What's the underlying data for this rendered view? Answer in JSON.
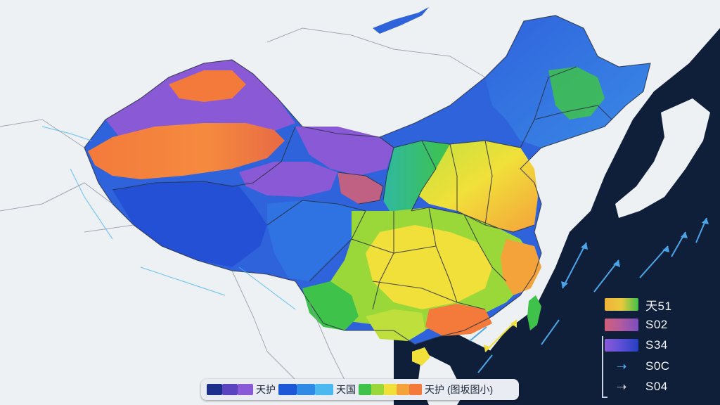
{
  "colors": {
    "ocean": "#0f1f3a",
    "land_neighbor": "#eef1f4",
    "border": "#2a3142",
    "blue_zone": "#2f63dc",
    "purple_zone": "#8a5ad6",
    "orange_zone": "#f47a3c",
    "green_zone": "#3fc24a",
    "yellow_zone": "#f1e03a",
    "arrow": "#4aa6e8"
  },
  "legend_right": {
    "items": [
      {
        "label": "天51",
        "kind": "swatch",
        "gradient": [
          "#f0b13a",
          "#e9c93c",
          "#3fc24a"
        ]
      },
      {
        "label": "S02",
        "kind": "swatch",
        "gradient": [
          "#d0607a",
          "#b05aa0",
          "#7a4ec0"
        ]
      },
      {
        "label": "S34",
        "kind": "swatch",
        "gradient": [
          "#8a5ad6",
          "#5b4fd6",
          "#243fc0"
        ]
      },
      {
        "label": "S0C",
        "kind": "arrow",
        "icon": "arrow-right-icon",
        "color": "#4aa6e8"
      },
      {
        "label": "S04",
        "kind": "arrow",
        "icon": "arrow-right-icon",
        "color": "#c0c6d0"
      }
    ]
  },
  "bottom_legend": {
    "segments_1": [
      "#1c2f8a",
      "#5a44c0",
      "#8a5ad6"
    ],
    "label_1": "天护",
    "segments_2": [
      "#1e56d8",
      "#2f8ae6",
      "#4bb8f0"
    ],
    "label_2": "天国",
    "segments_3": [
      "#3fc24a",
      "#9ad83a",
      "#f1e03a",
      "#f4a23a",
      "#f47a3c"
    ],
    "label_3": "天护 (图坂图小)"
  },
  "icons": {
    "wind_arrow": "double-arrow-icon"
  }
}
